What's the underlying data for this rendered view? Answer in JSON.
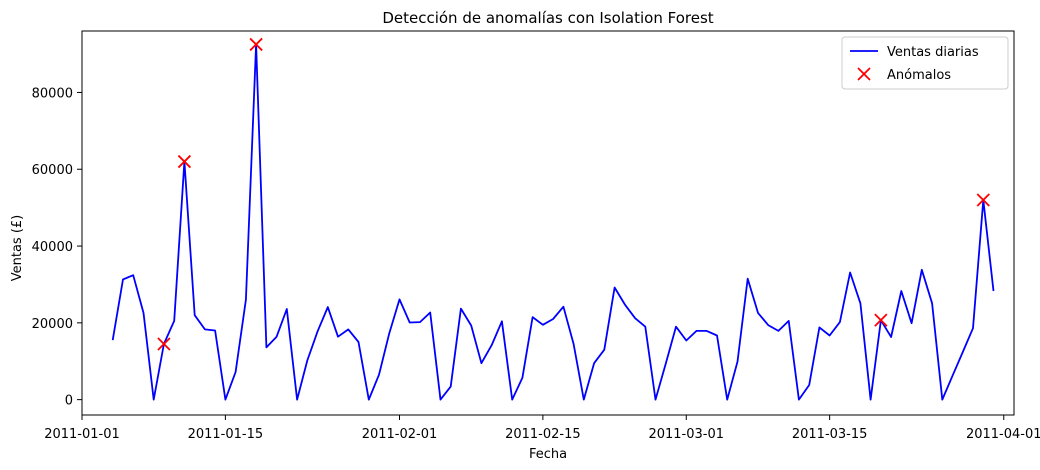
{
  "chart_data": {
    "type": "line",
    "title": "Detección de anomalías con Isolation Forest",
    "xlabel": "Fecha",
    "ylabel": "Ventas (£)",
    "x_ticks": [
      "2011-01-01",
      "2011-01-15",
      "2011-02-01",
      "2011-02-15",
      "2011-03-01",
      "2011-03-15",
      "2011-04-01"
    ],
    "y_ticks": [
      0,
      20000,
      40000,
      60000,
      80000
    ],
    "xlim": [
      "2011-01-01",
      "2011-04-02"
    ],
    "ylim": [
      -4000,
      96000
    ],
    "legend_position": "top-right",
    "series": [
      {
        "name": "Ventas diarias",
        "color": "#0000ff",
        "style": "line",
        "points": [
          [
            "2011-01-04",
            15500
          ],
          [
            "2011-01-05",
            31300
          ],
          [
            "2011-01-06",
            32400
          ],
          [
            "2011-01-07",
            22600
          ],
          [
            "2011-01-08",
            0
          ],
          [
            "2011-01-09",
            14500
          ],
          [
            "2011-01-10",
            20500
          ],
          [
            "2011-01-11",
            62000
          ],
          [
            "2011-01-12",
            22000
          ],
          [
            "2011-01-13",
            18300
          ],
          [
            "2011-01-14",
            18000
          ],
          [
            "2011-01-15",
            0
          ],
          [
            "2011-01-16",
            7200
          ],
          [
            "2011-01-17",
            26000
          ],
          [
            "2011-01-18",
            92500
          ],
          [
            "2011-01-19",
            13600
          ],
          [
            "2011-01-20",
            16400
          ],
          [
            "2011-01-21",
            23600
          ],
          [
            "2011-01-22",
            0
          ],
          [
            "2011-01-23",
            10200
          ],
          [
            "2011-01-24",
            17800
          ],
          [
            "2011-01-25",
            24100
          ],
          [
            "2011-01-26",
            16400
          ],
          [
            "2011-01-27",
            18300
          ],
          [
            "2011-01-28",
            15000
          ],
          [
            "2011-01-29",
            0
          ],
          [
            "2011-01-30",
            6500
          ],
          [
            "2011-01-31",
            17300
          ],
          [
            "2011-02-01",
            26100
          ],
          [
            "2011-02-02",
            20100
          ],
          [
            "2011-02-03",
            20200
          ],
          [
            "2011-02-04",
            22700
          ],
          [
            "2011-02-05",
            0
          ],
          [
            "2011-02-06",
            3400
          ],
          [
            "2011-02-07",
            23700
          ],
          [
            "2011-02-08",
            19300
          ],
          [
            "2011-02-09",
            9500
          ],
          [
            "2011-02-10",
            14200
          ],
          [
            "2011-02-11",
            20400
          ],
          [
            "2011-02-12",
            0
          ],
          [
            "2011-02-13",
            5700
          ],
          [
            "2011-02-14",
            21500
          ],
          [
            "2011-02-15",
            19500
          ],
          [
            "2011-02-16",
            21000
          ],
          [
            "2011-02-17",
            24200
          ],
          [
            "2011-02-18",
            14500
          ],
          [
            "2011-02-19",
            0
          ],
          [
            "2011-02-20",
            9500
          ],
          [
            "2011-02-21",
            13000
          ],
          [
            "2011-02-22",
            29200
          ],
          [
            "2011-02-23",
            24800
          ],
          [
            "2011-02-24",
            21200
          ],
          [
            "2011-02-25",
            19000
          ],
          [
            "2011-02-26",
            0
          ],
          [
            "2011-02-27",
            9400
          ],
          [
            "2011-02-28",
            19000
          ],
          [
            "2011-03-01",
            15400
          ],
          [
            "2011-03-02",
            17900
          ],
          [
            "2011-03-03",
            17900
          ],
          [
            "2011-03-04",
            16700
          ],
          [
            "2011-03-05",
            0
          ],
          [
            "2011-03-06",
            9900
          ],
          [
            "2011-03-07",
            31500
          ],
          [
            "2011-03-08",
            22600
          ],
          [
            "2011-03-09",
            19400
          ],
          [
            "2011-03-10",
            17900
          ],
          [
            "2011-03-11",
            20500
          ],
          [
            "2011-03-12",
            0
          ],
          [
            "2011-03-13",
            3800
          ],
          [
            "2011-03-14",
            18800
          ],
          [
            "2011-03-15",
            16700
          ],
          [
            "2011-03-16",
            20200
          ],
          [
            "2011-03-17",
            33100
          ],
          [
            "2011-03-18",
            25100
          ],
          [
            "2011-03-19",
            0
          ],
          [
            "2011-03-20",
            20700
          ],
          [
            "2011-03-21",
            16300
          ],
          [
            "2011-03-22",
            28300
          ],
          [
            "2011-03-23",
            19900
          ],
          [
            "2011-03-24",
            33800
          ],
          [
            "2011-03-25",
            25100
          ],
          [
            "2011-03-26",
            0
          ],
          [
            "2011-03-27",
            6200
          ],
          [
            "2011-03-28",
            12400
          ],
          [
            "2011-03-29",
            18600
          ],
          [
            "2011-03-30",
            52000
          ],
          [
            "2011-03-31",
            28300
          ]
        ]
      },
      {
        "name": "Anómalos",
        "color": "#ff0000",
        "style": "scatter-x",
        "points": [
          [
            "2011-01-09",
            14500
          ],
          [
            "2011-01-11",
            62000
          ],
          [
            "2011-01-18",
            92500
          ],
          [
            "2011-03-20",
            20700
          ],
          [
            "2011-03-30",
            52000
          ]
        ]
      }
    ]
  }
}
